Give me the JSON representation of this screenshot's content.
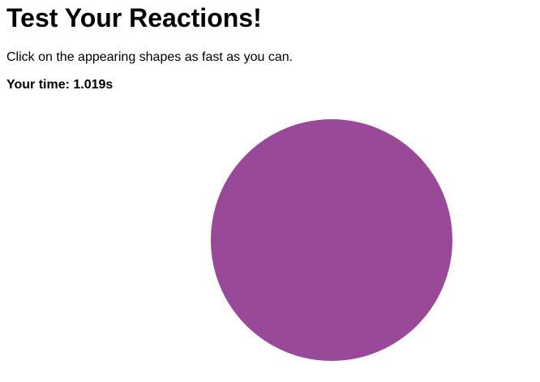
{
  "page": {
    "title": "Test Your Reactions!",
    "instructions": "Click on the appearing shapes as fast as you can.",
    "time_label": "Your time: ",
    "time_value": "1.019s"
  },
  "shape": {
    "kind": "circle",
    "color": "#9a4898"
  }
}
